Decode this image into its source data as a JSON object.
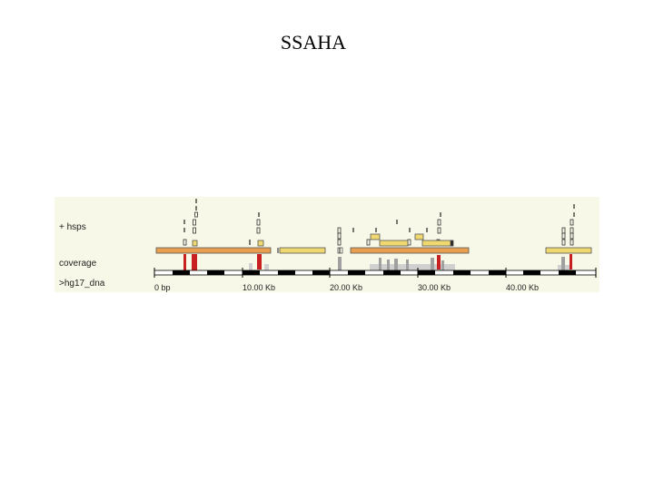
{
  "page": {
    "title": "SSAHA"
  },
  "tracks": {
    "hsps_label": "+ hsps",
    "coverage_label": "coverage",
    "sequence_label": ">hg17_dna"
  },
  "ruler": {
    "ticks": [
      "0 bp",
      "10.00 Kb",
      "20.00 Kb",
      "30.00 Kb",
      "40.00 Kb"
    ]
  },
  "colors": {
    "background": "#f8f8e8",
    "hsp_box": "#f0d870",
    "hsp_box_dark": "#e8a050",
    "coverage_high": "#c82020",
    "coverage_mid": "#a0a0a0",
    "coverage_low": "#d0d0d0"
  }
}
